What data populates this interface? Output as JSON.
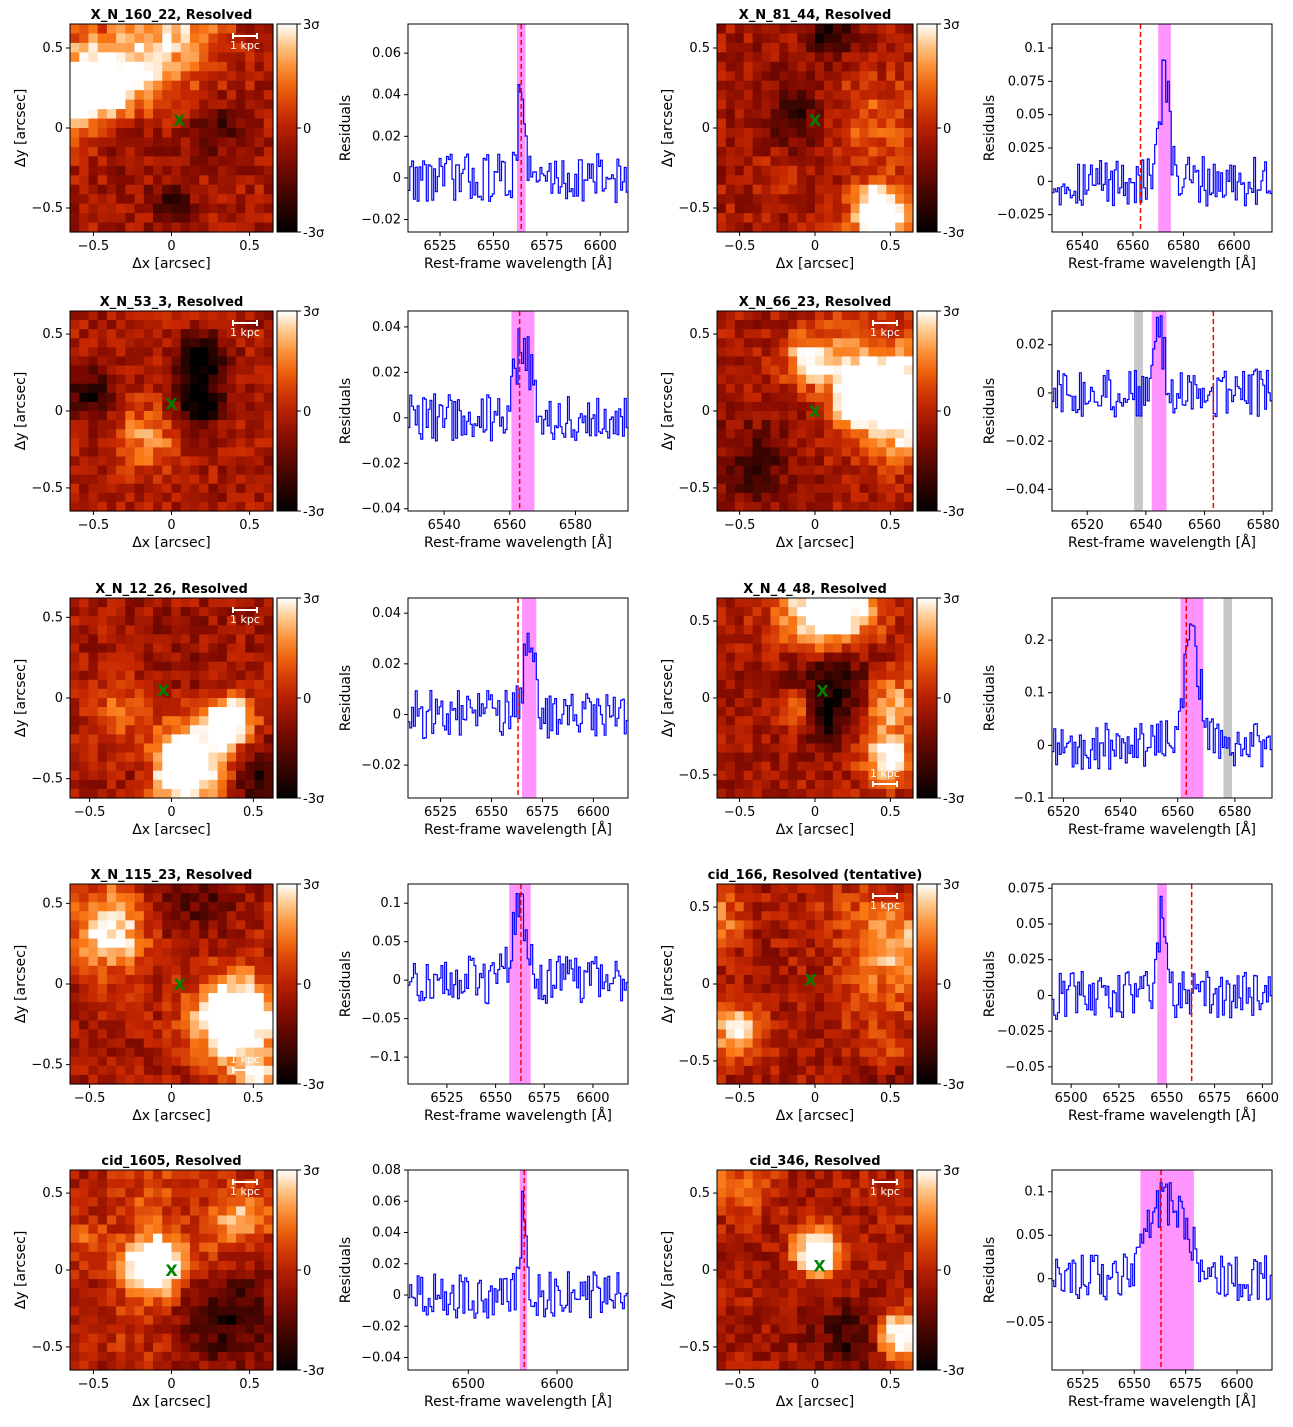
{
  "colors": {
    "map_low": "#000000",
    "map_mid": "#b31a00",
    "map_mid2": "#ff7a10",
    "map_high": "#ffffff",
    "spectrum": "#0000ff",
    "line_marker": "#ff0000",
    "window_fill": "#ff66ff",
    "sky_fill": "#c8c8c8",
    "centroid": "#008000",
    "scalebar": "#ffffff"
  },
  "labels": {
    "map_xlabel": "Δx [arcsec]",
    "map_ylabel": "Δy [arcsec]",
    "spec_xlabel": "Rest-frame wavelength [Å]",
    "spec_ylabel": "Residuals",
    "scalebar": "1 kpc",
    "cbar_top": "3σ",
    "cbar_mid": "0",
    "cbar_bottom": "-3σ",
    "centroid_marker": "X"
  },
  "chart_data": [
    {
      "type": "heatmap",
      "title": "X_N_160_22, Resolved",
      "xlim": [
        -0.65,
        0.65
      ],
      "ylim": [
        -0.65,
        0.65
      ],
      "xticks": [
        -0.5,
        0.0,
        0.5
      ],
      "yticks": [
        -0.5,
        0.0,
        0.5
      ],
      "centroid": [
        0.05,
        0.05
      ],
      "scalebar_loc": "top-right"
    },
    {
      "type": "line",
      "series": [
        {
          "values": []
        }
      ],
      "xlim": [
        6510,
        6613
      ],
      "ylim": [
        -0.026,
        0.074
      ],
      "xticks": [
        6525,
        6550,
        6575,
        6600
      ],
      "yticks": [
        -0.02,
        0.0,
        0.02,
        0.04,
        0.06
      ],
      "line_wavelength": 6563,
      "window": [
        6561,
        6565
      ],
      "sky_bands": []
    },
    {
      "type": "heatmap",
      "title": "X_N_81_44, Resolved",
      "xlim": [
        -0.65,
        0.65
      ],
      "ylim": [
        -0.65,
        0.65
      ],
      "xticks": [
        -0.5,
        0.0,
        0.5
      ],
      "yticks": [
        -0.5,
        0.0,
        0.5
      ],
      "centroid": [
        0.0,
        0.05
      ],
      "scalebar_loc": "bottom-right"
    },
    {
      "type": "line",
      "series": [
        {
          "values": []
        }
      ],
      "xlim": [
        6528,
        6615
      ],
      "ylim": [
        -0.038,
        0.118
      ],
      "xticks": [
        6540,
        6560,
        6580,
        6600
      ],
      "yticks": [
        -0.025,
        0.0,
        0.025,
        0.05,
        0.075,
        0.1
      ],
      "line_wavelength": 6563,
      "window": [
        6570,
        6575
      ],
      "sky_bands": []
    },
    {
      "type": "heatmap",
      "title": "X_N_53_3, Resolved",
      "xlim": [
        -0.65,
        0.65
      ],
      "ylim": [
        -0.65,
        0.65
      ],
      "xticks": [
        -0.5,
        0.0,
        0.5
      ],
      "yticks": [
        -0.5,
        0.0,
        0.5
      ],
      "centroid": [
        0.0,
        0.05
      ],
      "scalebar_loc": "top-right"
    },
    {
      "type": "line",
      "series": [
        {
          "values": []
        }
      ],
      "xlim": [
        6529,
        6596
      ],
      "ylim": [
        -0.041,
        0.047
      ],
      "xticks": [
        6540,
        6560,
        6580
      ],
      "yticks": [
        -0.04,
        -0.02,
        0.0,
        0.02,
        0.04
      ],
      "line_wavelength": 6563,
      "window": [
        6560.5,
        6567.5
      ],
      "sky_bands": []
    },
    {
      "type": "heatmap",
      "title": "X_N_66_23, Resolved",
      "xlim": [
        -0.65,
        0.65
      ],
      "ylim": [
        -0.65,
        0.65
      ],
      "xticks": [
        -0.5,
        0.0,
        0.5
      ],
      "yticks": [
        -0.5,
        0.0,
        0.5
      ],
      "centroid": [
        0.0,
        0.0
      ],
      "scalebar_loc": "top-right"
    },
    {
      "type": "line",
      "series": [
        {
          "values": []
        }
      ],
      "xlim": [
        6508,
        6583
      ],
      "ylim": [
        -0.049,
        0.034
      ],
      "xticks": [
        6520,
        6540,
        6560,
        6580
      ],
      "yticks": [
        -0.04,
        -0.02,
        0.0,
        0.02
      ],
      "line_wavelength": 6563,
      "window": [
        6542,
        6547
      ],
      "sky_bands": [
        [
          6536,
          6539
        ]
      ]
    },
    {
      "type": "heatmap",
      "title": "X_N_12_26, Resolved",
      "xlim": [
        -0.62,
        0.62
      ],
      "ylim": [
        -0.62,
        0.62
      ],
      "xticks": [
        -0.5,
        0.0,
        0.5
      ],
      "yticks": [
        -0.5,
        0.0,
        0.5
      ],
      "centroid": [
        -0.05,
        0.05
      ],
      "scalebar_loc": "top-right"
    },
    {
      "type": "line",
      "series": [
        {
          "values": []
        }
      ],
      "xlim": [
        6509,
        6617
      ],
      "ylim": [
        -0.033,
        0.046
      ],
      "xticks": [
        6525,
        6550,
        6575,
        6600
      ],
      "yticks": [
        -0.02,
        0.0,
        0.02,
        0.04
      ],
      "line_wavelength": 6563,
      "window": [
        6565,
        6572
      ],
      "sky_bands": []
    },
    {
      "type": "heatmap",
      "title": "X_N_4_48, Resolved",
      "xlim": [
        -0.65,
        0.65
      ],
      "ylim": [
        -0.65,
        0.65
      ],
      "xticks": [
        -0.5,
        0.0,
        0.5
      ],
      "yticks": [
        -0.5,
        0.0,
        0.5
      ],
      "centroid": [
        0.05,
        0.05
      ],
      "scalebar_loc": "bottom-right"
    },
    {
      "type": "line",
      "series": [
        {
          "values": []
        }
      ],
      "xlim": [
        6516,
        6593
      ],
      "ylim": [
        -0.1,
        0.28
      ],
      "xticks": [
        6520,
        6540,
        6560,
        6580
      ],
      "yticks": [
        -0.1,
        0.0,
        0.1,
        0.2
      ],
      "line_wavelength": 6563,
      "window": [
        6561,
        6569
      ],
      "sky_bands": [
        [
          6576,
          6579
        ]
      ]
    },
    {
      "type": "heatmap",
      "title": "X_N_115_23, Resolved",
      "xlim": [
        -0.62,
        0.62
      ],
      "ylim": [
        -0.62,
        0.62
      ],
      "xticks": [
        -0.5,
        0.0,
        0.5
      ],
      "yticks": [
        -0.5,
        0.0,
        0.5
      ],
      "centroid": [
        0.05,
        0.0
      ],
      "scalebar_loc": "bottom-right"
    },
    {
      "type": "line",
      "series": [
        {
          "values": []
        }
      ],
      "xlim": [
        6505,
        6618
      ],
      "ylim": [
        -0.135,
        0.125
      ],
      "xticks": [
        6525,
        6550,
        6575,
        6600
      ],
      "yticks": [
        -0.1,
        -0.05,
        0.0,
        0.05,
        0.1
      ],
      "line_wavelength": 6563,
      "window": [
        6557,
        6568
      ],
      "sky_bands": []
    },
    {
      "type": "heatmap",
      "title": "cid_166, Resolved (tentative)",
      "xlim": [
        -0.65,
        0.65
      ],
      "ylim": [
        -0.65,
        0.65
      ],
      "xticks": [
        -0.5,
        0.0,
        0.5
      ],
      "yticks": [
        -0.5,
        0.0,
        0.5
      ],
      "centroid": [
        -0.03,
        0.03
      ],
      "scalebar_loc": "top-right"
    },
    {
      "type": "line",
      "series": [
        {
          "values": []
        }
      ],
      "xlim": [
        6490,
        6605
      ],
      "ylim": [
        -0.062,
        0.078
      ],
      "xticks": [
        6500,
        6525,
        6550,
        6575,
        6600
      ],
      "yticks": [
        -0.05,
        -0.025,
        0.0,
        0.025,
        0.05,
        0.075
      ],
      "line_wavelength": 6563,
      "window": [
        6545,
        6550
      ],
      "sky_bands": []
    },
    {
      "type": "heatmap",
      "title": "cid_1605, Resolved",
      "xlim": [
        -0.65,
        0.65
      ],
      "ylim": [
        -0.65,
        0.65
      ],
      "xticks": [
        -0.5,
        0.0,
        0.5
      ],
      "yticks": [
        -0.5,
        0.0,
        0.5
      ],
      "centroid": [
        0.0,
        0.0
      ],
      "scalebar_loc": "top-right"
    },
    {
      "type": "line",
      "series": [
        {
          "values": []
        }
      ],
      "xlim": [
        6432,
        6680
      ],
      "ylim": [
        -0.048,
        0.08
      ],
      "xticks": [
        6500,
        6600
      ],
      "yticks": [
        -0.04,
        -0.02,
        0.0,
        0.02,
        0.04,
        0.06,
        0.08
      ],
      "line_wavelength": 6563,
      "window": [
        6558,
        6566
      ],
      "sky_bands": []
    },
    {
      "type": "heatmap",
      "title": "cid_346, Resolved",
      "xlim": [
        -0.65,
        0.65
      ],
      "ylim": [
        -0.65,
        0.65
      ],
      "xticks": [
        -0.5,
        0.0,
        0.5
      ],
      "yticks": [
        -0.5,
        0.0,
        0.5
      ],
      "centroid": [
        0.03,
        0.03
      ],
      "scalebar_loc": "top-right"
    },
    {
      "type": "line",
      "series": [
        {
          "values": []
        }
      ],
      "xlim": [
        6510,
        6617
      ],
      "ylim": [
        -0.105,
        0.125
      ],
      "xticks": [
        6525,
        6550,
        6575,
        6600
      ],
      "yticks": [
        -0.05,
        0.0,
        0.05,
        0.1
      ],
      "line_wavelength": 6563,
      "window": [
        6553,
        6579
      ],
      "sky_bands": []
    }
  ]
}
